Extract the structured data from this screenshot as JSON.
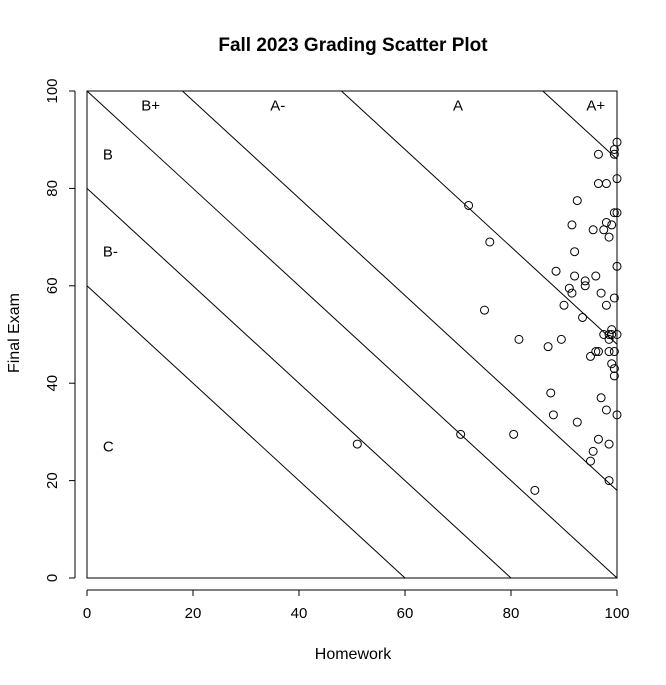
{
  "chart_data": {
    "type": "scatter",
    "title": "Fall 2023 Grading Scatter Plot",
    "xlabel": "Homework",
    "ylabel": "Final Exam",
    "xlim": [
      0,
      100
    ],
    "ylim": [
      0,
      100
    ],
    "xticks": [
      0,
      20,
      40,
      60,
      80,
      100
    ],
    "yticks": [
      0,
      20,
      40,
      60,
      80,
      100
    ],
    "xtick_labels": [
      "0",
      "20",
      "40",
      "60",
      "80",
      "100"
    ],
    "ytick_labels": [
      "0",
      "20",
      "40",
      "60",
      "80",
      "100"
    ],
    "grid": false,
    "boundaries": [
      {
        "intercept": 60
      },
      {
        "intercept": 80
      },
      {
        "intercept": 100
      },
      {
        "intercept": 118
      },
      {
        "intercept": 148
      },
      {
        "intercept": 186
      }
    ],
    "regions": [
      {
        "label": "C",
        "x": 3,
        "y": 27
      },
      {
        "label": "B-",
        "x": 3,
        "y": 67
      },
      {
        "label": "B",
        "x": 3,
        "y": 87
      },
      {
        "label": "B+",
        "x": 12,
        "y": 97
      },
      {
        "label": "A-",
        "x": 36,
        "y": 97
      },
      {
        "label": "A",
        "x": 70,
        "y": 97
      },
      {
        "label": "A+",
        "x": 96,
        "y": 97
      }
    ],
    "points": [
      [
        51,
        27.5
      ],
      [
        70.5,
        29.5
      ],
      [
        72,
        76.5
      ],
      [
        75,
        55
      ],
      [
        76,
        69
      ],
      [
        80.5,
        29.5
      ],
      [
        81.5,
        49
      ],
      [
        84.5,
        18
      ],
      [
        87,
        47.5
      ],
      [
        87.5,
        38
      ],
      [
        88,
        33.5
      ],
      [
        88.5,
        63
      ],
      [
        89.5,
        49
      ],
      [
        90,
        56
      ],
      [
        91,
        59.5
      ],
      [
        91.5,
        58.5
      ],
      [
        91.5,
        72.5
      ],
      [
        92,
        62
      ],
      [
        92,
        67
      ],
      [
        92.5,
        77.5
      ],
      [
        92.5,
        32
      ],
      [
        93.5,
        53.5
      ],
      [
        94,
        60
      ],
      [
        94,
        61
      ],
      [
        95,
        45.5
      ],
      [
        95,
        24
      ],
      [
        95.5,
        26
      ],
      [
        95.5,
        71.5
      ],
      [
        96,
        46.5
      ],
      [
        96,
        62
      ],
      [
        96.5,
        46.5
      ],
      [
        96.5,
        81
      ],
      [
        96.5,
        87
      ],
      [
        96.5,
        28.5
      ],
      [
        97,
        58.5
      ],
      [
        97,
        37
      ],
      [
        97.5,
        50
      ],
      [
        97.5,
        71.5
      ],
      [
        98,
        73
      ],
      [
        98,
        81
      ],
      [
        98,
        34.5
      ],
      [
        98,
        56
      ],
      [
        98.5,
        49
      ],
      [
        98.5,
        46.5
      ],
      [
        98.5,
        50
      ],
      [
        98.5,
        70
      ],
      [
        98.5,
        27.5
      ],
      [
        98.5,
        20
      ],
      [
        99,
        51
      ],
      [
        99,
        50
      ],
      [
        99,
        44
      ],
      [
        99,
        72.5
      ],
      [
        99.5,
        46.5
      ],
      [
        99.5,
        43
      ],
      [
        99.5,
        57.5
      ],
      [
        99.5,
        75
      ],
      [
        99.5,
        88
      ],
      [
        99.5,
        41.5
      ],
      [
        99.5,
        87
      ],
      [
        100,
        89.5
      ],
      [
        100,
        82
      ],
      [
        100,
        75
      ],
      [
        100,
        64
      ],
      [
        100,
        50
      ],
      [
        100,
        33.5
      ]
    ]
  }
}
